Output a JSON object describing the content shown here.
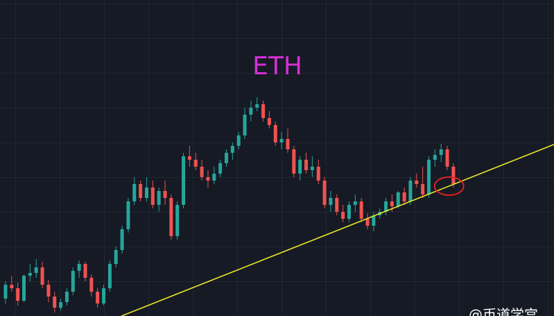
{
  "chart_data": {
    "type": "candlestick",
    "title": "ETH",
    "watermark": "@币道学宫",
    "up_color": "#26a69a",
    "down_color": "#ef5350",
    "xlim": [
      -0.9,
      89.4
    ],
    "ylim": [
      0,
      455
    ],
    "ohlc": [
      [
        25,
        50,
        18,
        45
      ],
      [
        45,
        58,
        35,
        40
      ],
      [
        40,
        48,
        15,
        22
      ],
      [
        22,
        60,
        20,
        58
      ],
      [
        58,
        75,
        50,
        62
      ],
      [
        62,
        82,
        55,
        70
      ],
      [
        70,
        78,
        40,
        45
      ],
      [
        45,
        52,
        20,
        28
      ],
      [
        28,
        35,
        5,
        12
      ],
      [
        12,
        25,
        8,
        20
      ],
      [
        20,
        40,
        15,
        35
      ],
      [
        35,
        70,
        30,
        65
      ],
      [
        65,
        80,
        55,
        75
      ],
      [
        75,
        78,
        50,
        55
      ],
      [
        55,
        60,
        28,
        35
      ],
      [
        35,
        40,
        12,
        18
      ],
      [
        18,
        45,
        15,
        40
      ],
      [
        40,
        80,
        35,
        75
      ],
      [
        75,
        100,
        70,
        95
      ],
      [
        95,
        130,
        90,
        125
      ],
      [
        125,
        170,
        120,
        165
      ],
      [
        165,
        200,
        160,
        190
      ],
      [
        190,
        195,
        165,
        170
      ],
      [
        170,
        200,
        165,
        185
      ],
      [
        185,
        195,
        155,
        160
      ],
      [
        160,
        185,
        150,
        180
      ],
      [
        180,
        195,
        160,
        170
      ],
      [
        170,
        175,
        110,
        115
      ],
      [
        115,
        165,
        110,
        160
      ],
      [
        160,
        235,
        155,
        230
      ],
      [
        230,
        245,
        215,
        225
      ],
      [
        225,
        235,
        210,
        215
      ],
      [
        215,
        225,
        195,
        200
      ],
      [
        200,
        210,
        185,
        195
      ],
      [
        195,
        215,
        190,
        205
      ],
      [
        205,
        225,
        200,
        220
      ],
      [
        220,
        240,
        215,
        235
      ],
      [
        235,
        250,
        225,
        245
      ],
      [
        245,
        265,
        240,
        260
      ],
      [
        260,
        300,
        255,
        290
      ],
      [
        290,
        310,
        280,
        300
      ],
      [
        300,
        315,
        295,
        305
      ],
      [
        305,
        310,
        280,
        285
      ],
      [
        285,
        295,
        270,
        275
      ],
      [
        275,
        280,
        245,
        250
      ],
      [
        250,
        265,
        240,
        255
      ],
      [
        255,
        270,
        235,
        240
      ],
      [
        240,
        245,
        200,
        205
      ],
      [
        205,
        230,
        195,
        225
      ],
      [
        225,
        235,
        205,
        210
      ],
      [
        210,
        230,
        200,
        215
      ],
      [
        215,
        225,
        190,
        195
      ],
      [
        195,
        200,
        155,
        160
      ],
      [
        160,
        180,
        150,
        170
      ],
      [
        170,
        175,
        145,
        150
      ],
      [
        150,
        160,
        135,
        140
      ],
      [
        140,
        165,
        135,
        160
      ],
      [
        160,
        175,
        150,
        165
      ],
      [
        165,
        170,
        135,
        140
      ],
      [
        140,
        148,
        125,
        130
      ],
      [
        130,
        150,
        122,
        145
      ],
      [
        145,
        155,
        140,
        150
      ],
      [
        150,
        170,
        145,
        165
      ],
      [
        165,
        175,
        150,
        158
      ],
      [
        158,
        180,
        155,
        178
      ],
      [
        178,
        185,
        160,
        165
      ],
      [
        165,
        200,
        160,
        195
      ],
      [
        195,
        205,
        185,
        190
      ],
      [
        190,
        215,
        170,
        175
      ],
      [
        175,
        230,
        170,
        225
      ],
      [
        225,
        240,
        215,
        232
      ],
      [
        232,
        248,
        222,
        240
      ],
      [
        240,
        245,
        210,
        215
      ],
      [
        215,
        220,
        185,
        190
      ]
    ],
    "trendline": {
      "color": "#e8e82a",
      "x": [
        18.9,
        89.4
      ],
      "y": [
        0,
        247
      ]
    },
    "highlight": {
      "color": "#e02020",
      "x": 72.3,
      "y": 187
    }
  }
}
